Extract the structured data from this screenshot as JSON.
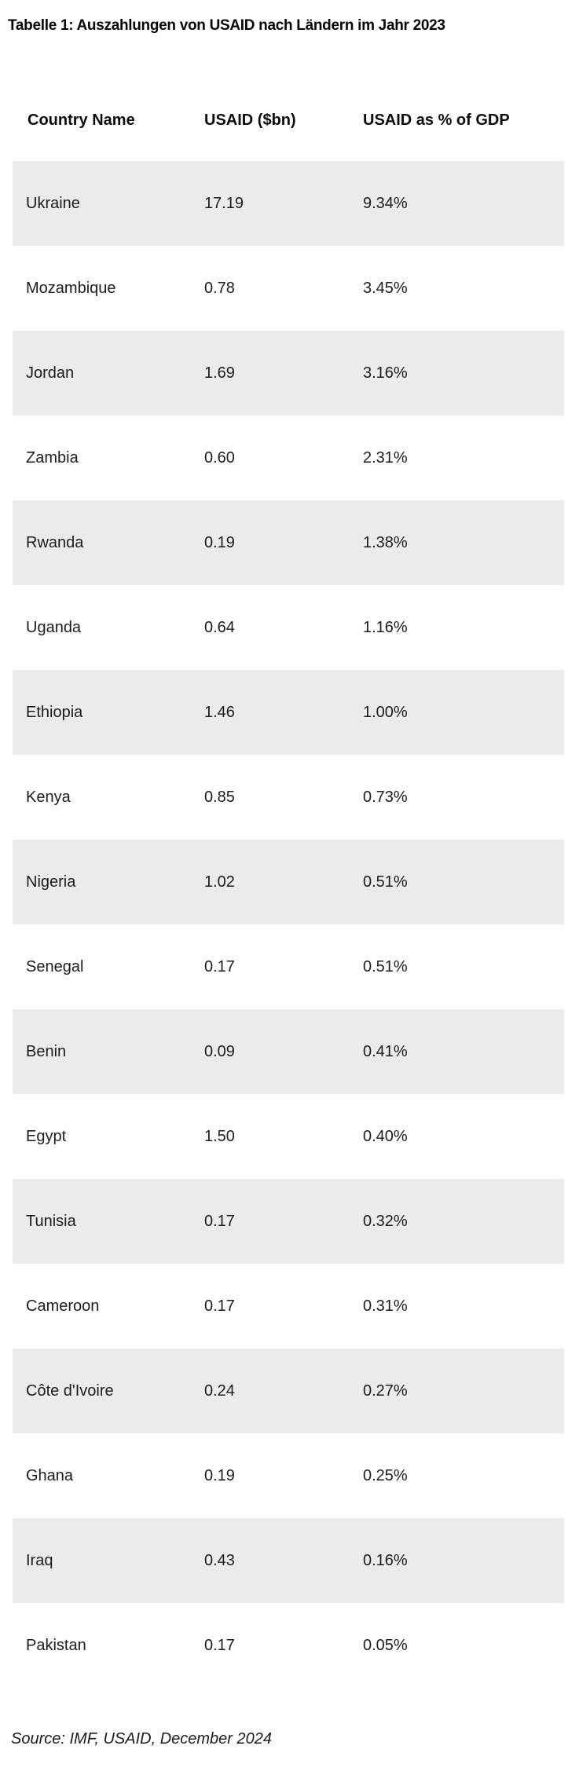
{
  "chart_data": {
    "type": "table",
    "title": "Tabelle 1: Auszahlungen von USAID nach Ländern im Jahr 2023",
    "columns": [
      "Country Name",
      "USAID ($bn)",
      "USAID as % of GDP"
    ],
    "rows": [
      [
        "Ukraine",
        "17.19",
        "9.34%"
      ],
      [
        "Mozambique",
        "0.78",
        "3.45%"
      ],
      [
        "Jordan",
        "1.69",
        "3.16%"
      ],
      [
        "Zambia",
        "0.60",
        "2.31%"
      ],
      [
        "Rwanda",
        "0.19",
        "1.38%"
      ],
      [
        "Uganda",
        "0.64",
        "1.16%"
      ],
      [
        "Ethiopia",
        "1.46",
        "1.00%"
      ],
      [
        "Kenya",
        "0.85",
        "0.73%"
      ],
      [
        "Nigeria",
        "1.02",
        "0.51%"
      ],
      [
        "Senegal",
        "0.17",
        "0.51%"
      ],
      [
        "Benin",
        "0.09",
        "0.41%"
      ],
      [
        "Egypt",
        "1.50",
        "0.40%"
      ],
      [
        "Tunisia",
        "0.17",
        "0.32%"
      ],
      [
        "Cameroon",
        "0.17",
        "0.31%"
      ],
      [
        "Côte d'Ivoire",
        "0.24",
        "0.27%"
      ],
      [
        "Ghana",
        "0.19",
        "0.25%"
      ],
      [
        "Iraq",
        "0.43",
        "0.16%"
      ],
      [
        "Pakistan",
        "0.17",
        "0.05%"
      ]
    ],
    "source": "Source: IMF, USAID, December 2024",
    "layout": {
      "stripe_pattern": "odd rows shaded starting with first row",
      "grid": "off",
      "legend": "none"
    }
  },
  "colors": {
    "row_stripe": "#eaebed",
    "text": "#1c1c1c",
    "title_text": "#050505",
    "background": "#ffffff"
  }
}
